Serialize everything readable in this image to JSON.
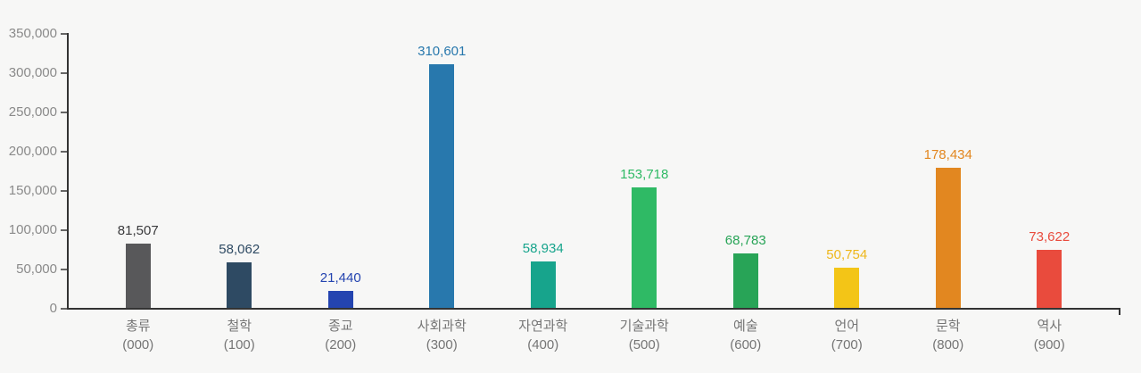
{
  "chart_data": {
    "type": "bar",
    "title": "",
    "xlabel": "",
    "ylabel": "",
    "ylim": [
      0,
      350000
    ],
    "grid": false,
    "legend": "none",
    "y_tick_values": [
      0,
      50000,
      100000,
      150000,
      200000,
      250000,
      300000,
      350000
    ],
    "y_tick_labels": [
      "0",
      "50,000",
      "100,000",
      "150,000",
      "200,000",
      "250,000",
      "300,000",
      "350,000"
    ],
    "categories": [
      {
        "name": "총류",
        "code": "(000)"
      },
      {
        "name": "철학",
        "code": "(100)"
      },
      {
        "name": "종교",
        "code": "(200)"
      },
      {
        "name": "사회과학",
        "code": "(300)"
      },
      {
        "name": "자연과학",
        "code": "(400)"
      },
      {
        "name": "기술과학",
        "code": "(500)"
      },
      {
        "name": "예술",
        "code": "(600)"
      },
      {
        "name": "언어",
        "code": "(700)"
      },
      {
        "name": "문학",
        "code": "(800)"
      },
      {
        "name": "역사",
        "code": "(900)"
      }
    ],
    "values": [
      81507,
      58062,
      21440,
      310601,
      58934,
      153718,
      68783,
      50754,
      178434,
      73622
    ],
    "value_labels": [
      "81,507",
      "58,062",
      "21,440",
      "310,601",
      "58,934",
      "153,718",
      "68,783",
      "50,754",
      "178,434",
      "73,622"
    ],
    "bar_colors": [
      "#58585a",
      "#2e4a63",
      "#2444b0",
      "#2878ad",
      "#17a48c",
      "#2fba65",
      "#28a457",
      "#f3c517",
      "#e28720",
      "#e94b3d"
    ],
    "value_label_colors": [
      "#3a3a3c",
      "#2e4a63",
      "#2444b0",
      "#2878ad",
      "#17a48c",
      "#2fba65",
      "#28a457",
      "#eeb71c",
      "#e28720",
      "#e94b3d"
    ]
  },
  "colors": {
    "background": "#f7f7f6",
    "axis": "#333333",
    "y_tick_label": "#8a8a8a",
    "category_label": "#757575"
  }
}
